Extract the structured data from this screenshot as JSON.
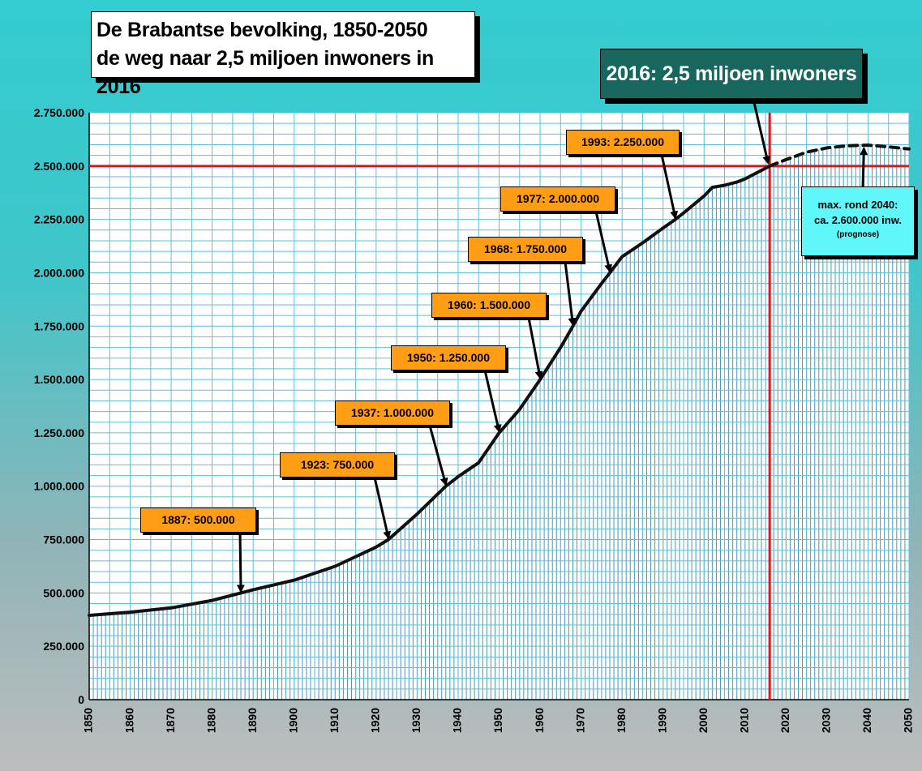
{
  "title": {
    "line1": "De Brabantse bevolking, 1850-2050",
    "line2": "de weg naar 2,5 miljoen inwoners in 2016"
  },
  "highlight": "2016:  2,5 miljoen inwoners",
  "note": {
    "line1": "max. rond 2040:",
    "line2": "ca. 2.600.000 inw.",
    "line3": "(prognose)"
  },
  "annotations": [
    {
      "label": "1887:  500.000",
      "year": 1887,
      "value": 500000
    },
    {
      "label": "1923:  750.000",
      "year": 1923,
      "value": 750000
    },
    {
      "label": "1937:  1.000.000",
      "year": 1937,
      "value": 1000000
    },
    {
      "label": "1950:  1.250.000",
      "year": 1950,
      "value": 1250000
    },
    {
      "label": "1960:  1.500.000",
      "year": 1960,
      "value": 1500000
    },
    {
      "label": "1968:  1.750.000",
      "year": 1968,
      "value": 1750000
    },
    {
      "label": "1977:  2.000.000",
      "year": 1977,
      "value": 2000000
    },
    {
      "label": "1993:  2.250.000",
      "year": 1993,
      "value": 2250000
    }
  ],
  "colors": {
    "plot_bg": "#ffffff",
    "bars": "#3f9bb8",
    "grid": "#5bc1d8",
    "line": "#111111",
    "reference": "#e0141e",
    "annotation_bg": "#ff9d14",
    "highlight_bg": "#18675e",
    "note_bg": "#5ff7f9"
  },
  "chart_data": {
    "type": "area",
    "title": "",
    "xlabel": "",
    "ylabel": "",
    "xlim": [
      1850,
      2050
    ],
    "ylim": [
      0,
      2750000
    ],
    "x_ticks": [
      1850,
      1860,
      1870,
      1880,
      1890,
      1900,
      1910,
      1920,
      1930,
      1940,
      1950,
      1960,
      1970,
      1980,
      1990,
      2000,
      2010,
      2020,
      2030,
      2040,
      2050
    ],
    "y_ticks": [
      0,
      250000,
      500000,
      750000,
      1000000,
      1250000,
      1500000,
      1750000,
      2000000,
      2250000,
      2500000,
      2750000
    ],
    "y_tick_labels": [
      "0",
      "250.000",
      "500.000",
      "750.000",
      "1.000.000",
      "1.250.000",
      "1.500.000",
      "1.750.000",
      "2.000.000",
      "2.250.000",
      "2.500.000",
      "2.750.000"
    ],
    "grid": true,
    "series": [
      {
        "style": "solid",
        "x": [
          1850,
          1860,
          1870,
          1880,
          1887,
          1890,
          1900,
          1910,
          1920,
          1923,
          1930,
          1937,
          1940,
          1945,
          1950,
          1955,
          1960,
          1965,
          1968,
          1970,
          1975,
          1977,
          1980,
          1985,
          1990,
          1993,
          1995,
          2000,
          2002,
          2005,
          2008,
          2010,
          2014,
          2016
        ],
        "y": [
          395000,
          410000,
          430000,
          465000,
          500000,
          515000,
          560000,
          625000,
          715000,
          750000,
          870000,
          1000000,
          1045000,
          1110000,
          1250000,
          1360000,
          1500000,
          1650000,
          1750000,
          1820000,
          1950000,
          2000000,
          2075000,
          2140000,
          2210000,
          2250000,
          2280000,
          2360000,
          2400000,
          2410000,
          2425000,
          2440000,
          2480000,
          2500000
        ]
      },
      {
        "style": "dashed",
        "name": "prognose",
        "x": [
          2016,
          2020,
          2025,
          2030,
          2035,
          2040,
          2045,
          2050
        ],
        "y": [
          2500000,
          2530000,
          2565000,
          2585000,
          2595000,
          2598000,
          2590000,
          2580000
        ]
      }
    ],
    "reference_lines": [
      {
        "axis": "y",
        "value": 2500000
      },
      {
        "axis": "x",
        "value": 2016
      }
    ]
  }
}
